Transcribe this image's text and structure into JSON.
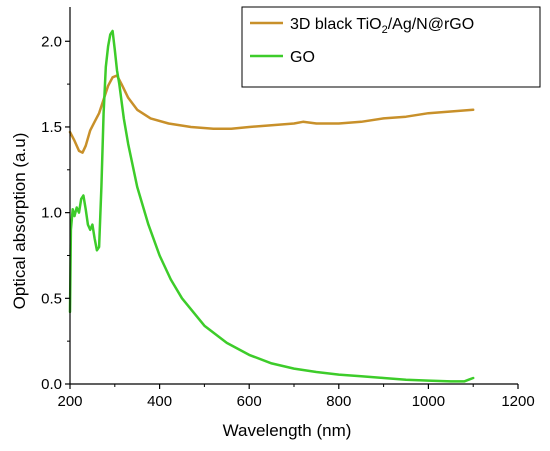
{
  "chart_data": {
    "type": "line",
    "title": "",
    "xlabel": "Wavelength (nm)",
    "ylabel": "Optical absorption (a.u)",
    "xlim": [
      200,
      1200
    ],
    "ylim": [
      0.0,
      2.2
    ],
    "x_ticks": [
      200,
      400,
      600,
      800,
      1000,
      1200
    ],
    "x_tick_labels": [
      "200",
      "400",
      "600",
      "800",
      "1000",
      "1200"
    ],
    "y_ticks": [
      0.0,
      0.5,
      1.0,
      1.5,
      2.0
    ],
    "y_tick_labels": [
      "0.0",
      "0.5",
      "1.0",
      "1.5",
      "2.0"
    ],
    "grid": false,
    "legend_position": "top-right",
    "legend": {
      "series1": {
        "prefix": "3D black TiO",
        "sub": "2",
        "suffix": "/Ag/N@rGO"
      },
      "series2": {
        "label": "GO"
      }
    },
    "series": [
      {
        "name": "3D black TiO2/Ag/N@rGO",
        "color": "#c8902a",
        "x": [
          200,
          210,
          220,
          228,
          235,
          245,
          255,
          265,
          275,
          285,
          295,
          305,
          315,
          330,
          350,
          380,
          420,
          470,
          520,
          560,
          600,
          650,
          700,
          720,
          750,
          800,
          850,
          900,
          950,
          1000,
          1050,
          1100
        ],
        "y": [
          1.47,
          1.42,
          1.36,
          1.35,
          1.39,
          1.48,
          1.53,
          1.58,
          1.66,
          1.74,
          1.79,
          1.8,
          1.75,
          1.67,
          1.6,
          1.55,
          1.52,
          1.5,
          1.49,
          1.49,
          1.5,
          1.51,
          1.52,
          1.53,
          1.52,
          1.52,
          1.53,
          1.55,
          1.56,
          1.58,
          1.59,
          1.6
        ]
      },
      {
        "name": "GO",
        "color": "#3dcc2a",
        "x": [
          200,
          202,
          206,
          210,
          215,
          220,
          225,
          230,
          235,
          240,
          245,
          250,
          255,
          260,
          265,
          270,
          275,
          280,
          285,
          290,
          295,
          300,
          305,
          310,
          320,
          330,
          350,
          375,
          400,
          425,
          450,
          500,
          550,
          600,
          650,
          700,
          750,
          800,
          850,
          900,
          950,
          1000,
          1050,
          1080,
          1090,
          1100
        ],
        "y": [
          0.42,
          0.9,
          1.02,
          0.98,
          1.03,
          1.0,
          1.08,
          1.1,
          1.02,
          0.93,
          0.9,
          0.93,
          0.85,
          0.78,
          0.8,
          1.15,
          1.58,
          1.85,
          1.97,
          2.04,
          2.06,
          1.95,
          1.83,
          1.75,
          1.55,
          1.4,
          1.15,
          0.93,
          0.75,
          0.61,
          0.5,
          0.34,
          0.24,
          0.17,
          0.12,
          0.09,
          0.07,
          0.055,
          0.045,
          0.035,
          0.025,
          0.02,
          0.015,
          0.015,
          0.025,
          0.035
        ]
      }
    ]
  }
}
